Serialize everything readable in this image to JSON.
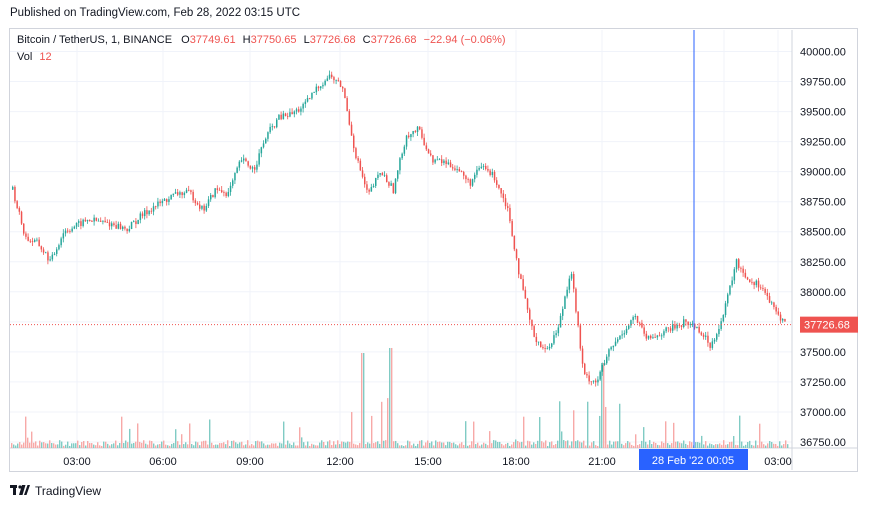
{
  "header": {
    "published": "Published on TradingView.com, Feb 28, 2022 03:15 UTC"
  },
  "legend": {
    "symbol": "Bitcoin / TetherUS, 1, BINANCE",
    "o_label": "O",
    "o_value": "37749.61",
    "h_label": "H",
    "h_value": "37750.65",
    "l_label": "L",
    "l_value": "37726.68",
    "c_label": "C",
    "c_value": "37726.68",
    "change": "−22.94 (−0.06%)",
    "vol_label": "Vol",
    "vol_value": "12"
  },
  "footer": {
    "brand": "TradingView",
    "logo_icon": "tradingview-logo-icon"
  },
  "colors": {
    "up": "#26a69a",
    "down": "#ef5350",
    "crosshair": "#2962ff",
    "grid": "#f0f3fa"
  },
  "chart_data": {
    "type": "candlestick",
    "title": "Bitcoin / TetherUS, 1, BINANCE",
    "ylim": [
      36700,
      40150
    ],
    "y_ticks": [
      "40000.00",
      "39750.00",
      "39500.00",
      "39250.00",
      "39000.00",
      "38750.00",
      "38500.00",
      "38250.00",
      "38000.00",
      "37750.00",
      "37500.00",
      "37250.00",
      "37000.00",
      "36750.00"
    ],
    "x_ticks": [
      "03:00",
      "06:00",
      "09:00",
      "12:00",
      "15:00",
      "18:00",
      "21:00",
      "00:05",
      "03:00"
    ],
    "last_price": "37726.68",
    "crosshair_label": "28 Feb '22   00:05",
    "price_path": [
      {
        "t": "01:00",
        "p": 38850
      },
      {
        "t": "01:20",
        "p": 38450
      },
      {
        "t": "01:45",
        "p": 38400
      },
      {
        "t": "02:00",
        "p": 38250
      },
      {
        "t": "02:20",
        "p": 38500
      },
      {
        "t": "03:00",
        "p": 38550
      },
      {
        "t": "03:30",
        "p": 38600
      },
      {
        "t": "04:00",
        "p": 38580
      },
      {
        "t": "04:40",
        "p": 38560
      },
      {
        "t": "05:20",
        "p": 38520
      },
      {
        "t": "05:40",
        "p": 38620
      },
      {
        "t": "06:20",
        "p": 38700
      },
      {
        "t": "07:00",
        "p": 38760
      },
      {
        "t": "07:40",
        "p": 38820
      },
      {
        "t": "08:20",
        "p": 38820
      },
      {
        "t": "08:50",
        "p": 38680
      },
      {
        "t": "09:10",
        "p": 38850
      },
      {
        "t": "09:40",
        "p": 38820
      },
      {
        "t": "10:00",
        "p": 39100
      },
      {
        "t": "10:40",
        "p": 39020
      },
      {
        "t": "11:00",
        "p": 39300
      },
      {
        "t": "11:20",
        "p": 39450
      },
      {
        "t": "11:50",
        "p": 39480
      },
      {
        "t": "12:20",
        "p": 39550
      },
      {
        "t": "12:50",
        "p": 39700
      },
      {
        "t": "13:10",
        "p": 39800
      },
      {
        "t": "13:30",
        "p": 39700
      },
      {
        "t": "13:50",
        "p": 39150
      },
      {
        "t": "14:00",
        "p": 38800
      },
      {
        "t": "14:20",
        "p": 39000
      },
      {
        "t": "14:50",
        "p": 38850
      },
      {
        "t": "15:10",
        "p": 39300
      },
      {
        "t": "15:30",
        "p": 39350
      },
      {
        "t": "16:00",
        "p": 39100
      },
      {
        "t": "16:40",
        "p": 39080
      },
      {
        "t": "17:20",
        "p": 39030
      },
      {
        "t": "17:40",
        "p": 38900
      },
      {
        "t": "18:00",
        "p": 39050
      },
      {
        "t": "18:30",
        "p": 38950
      },
      {
        "t": "18:50",
        "p": 38700
      },
      {
        "t": "19:10",
        "p": 38100
      },
      {
        "t": "19:30",
        "p": 37650
      },
      {
        "t": "19:50",
        "p": 37500
      },
      {
        "t": "20:10",
        "p": 37700
      },
      {
        "t": "20:30",
        "p": 38200
      },
      {
        "t": "20:50",
        "p": 37300
      },
      {
        "t": "21:10",
        "p": 37250
      },
      {
        "t": "21:40",
        "p": 37500
      },
      {
        "t": "22:00",
        "p": 37650
      },
      {
        "t": "22:20",
        "p": 37800
      },
      {
        "t": "22:40",
        "p": 37600
      },
      {
        "t": "23:00",
        "p": 37650
      },
      {
        "t": "23:30",
        "p": 37700
      },
      {
        "t": "23:50",
        "p": 37750
      },
      {
        "t": "00:20",
        "p": 37700
      },
      {
        "t": "00:40",
        "p": 37550
      },
      {
        "t": "01:00",
        "p": 37800
      },
      {
        "t": "01:20",
        "p": 38250
      },
      {
        "t": "01:40",
        "p": 38100
      },
      {
        "t": "02:10",
        "p": 38050
      },
      {
        "t": "02:40",
        "p": 37850
      },
      {
        "t": "03:00",
        "p": 37726
      }
    ]
  }
}
